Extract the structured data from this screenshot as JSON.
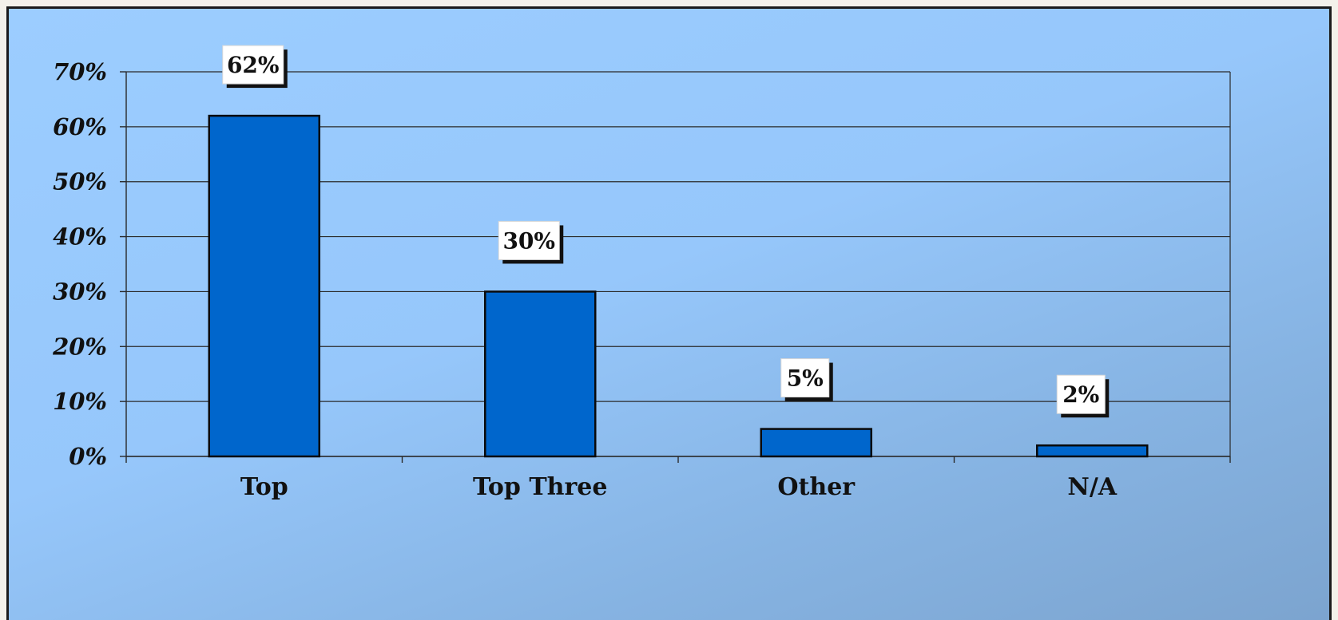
{
  "chart_data": {
    "type": "bar",
    "categories": [
      "Top",
      "Top Three",
      "Other",
      "N/A"
    ],
    "values": [
      62,
      30,
      5,
      2
    ],
    "data_labels": [
      "62%",
      "30%",
      "5%",
      "2%"
    ],
    "y_ticks": [
      "0%",
      "10%",
      "20%",
      "30%",
      "40%",
      "50%",
      "60%",
      "70%"
    ],
    "ylim": [
      0,
      70
    ],
    "ytick_step": 10,
    "grid": true,
    "legend": "none",
    "title": "",
    "xlabel": "",
    "ylabel": ""
  },
  "colors": {
    "bar_fill": "#0066cc",
    "bar_stroke": "#0a0a0a",
    "grid": "#2a2a2a",
    "label_box": "#ffffff",
    "label_shadow": "#111111"
  }
}
